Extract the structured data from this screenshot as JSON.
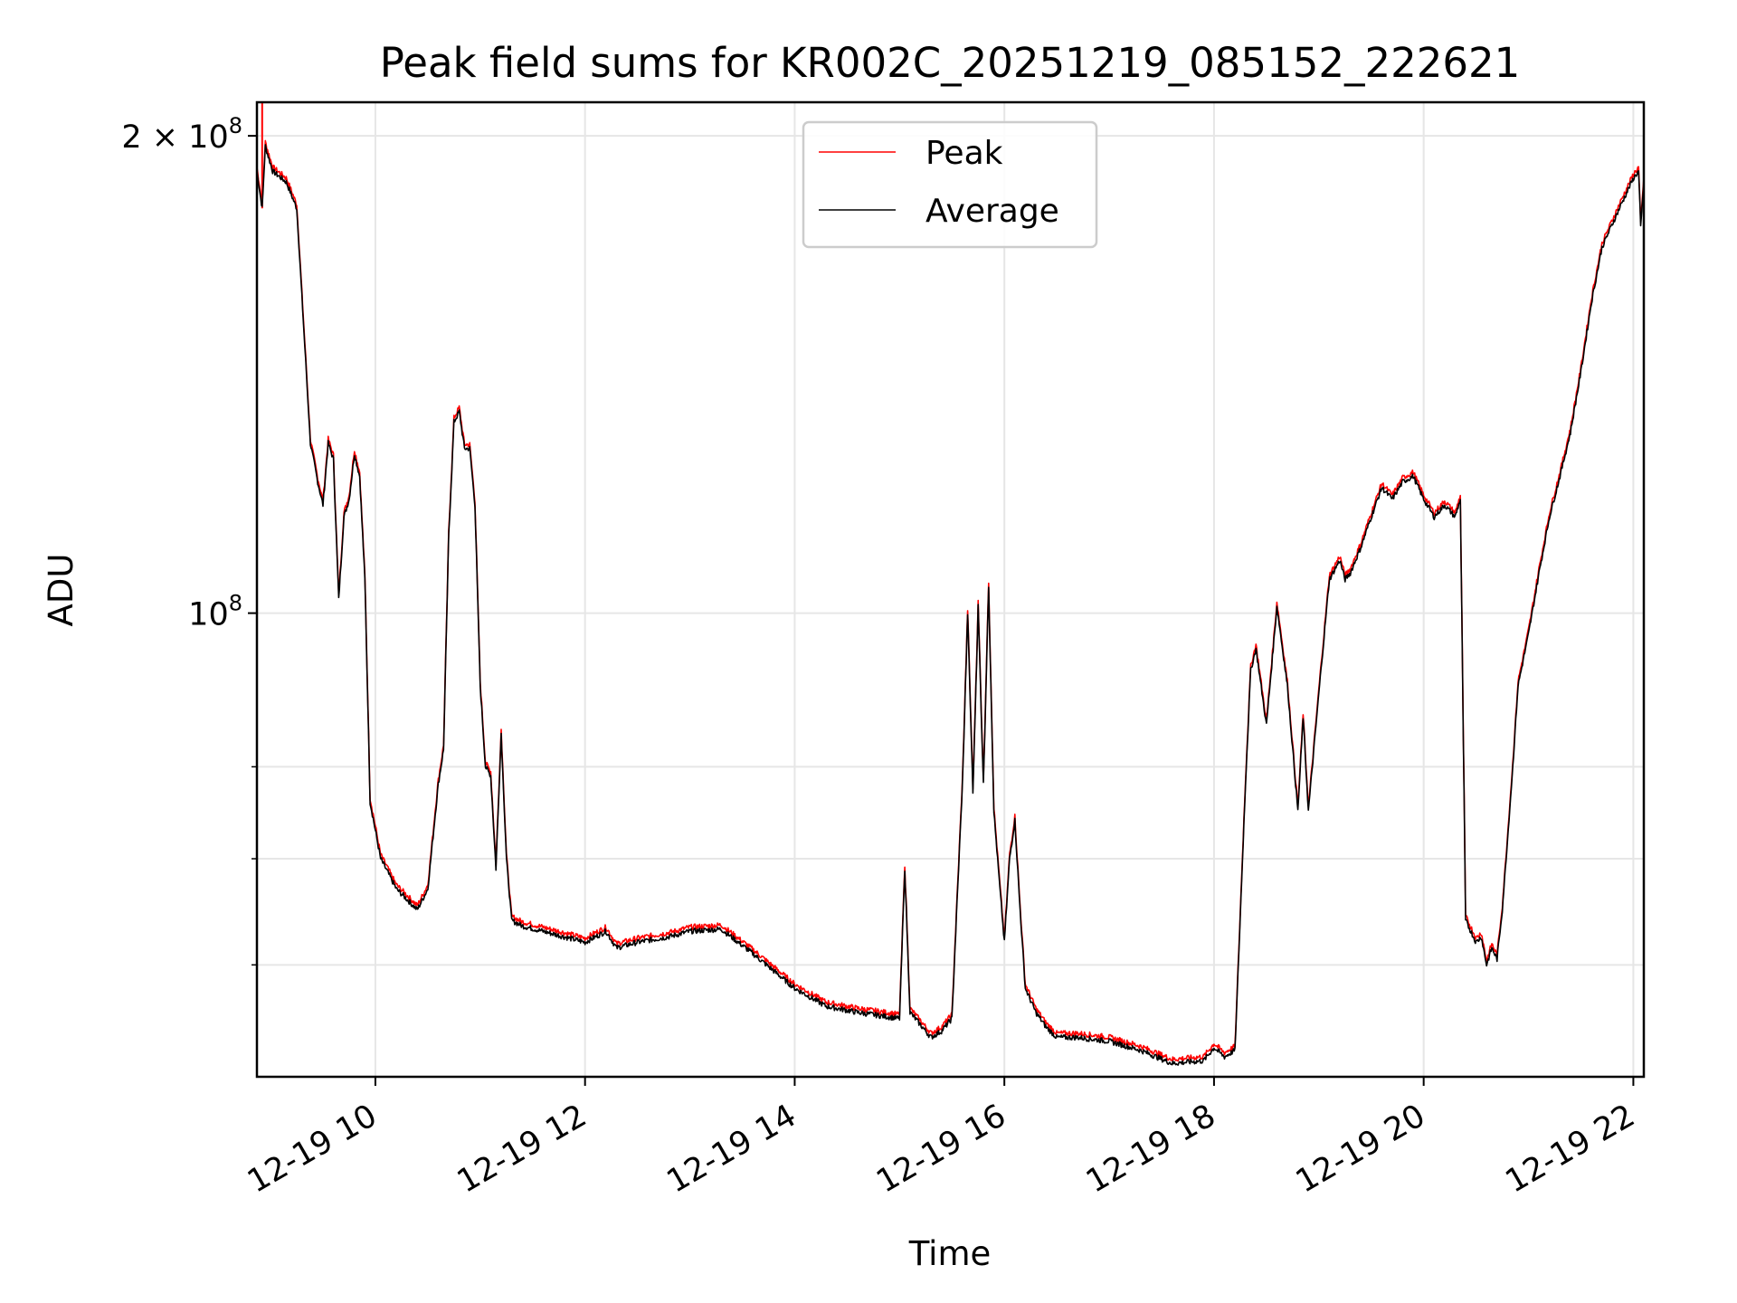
{
  "chart_data": {
    "type": "line",
    "title": "Peak field sums for KR002C_20251219_085152_222621",
    "xlabel": "Time",
    "ylabel": "ADU",
    "yscale": "log",
    "xlim_hours": [
      8.87,
      22.1
    ],
    "ylim": [
      51000000,
      210000000
    ],
    "grid": true,
    "legend_position": "top-center",
    "x_ticks": [
      {
        "value": 10,
        "label": "12-19 10"
      },
      {
        "value": 12,
        "label": "12-19 12"
      },
      {
        "value": 14,
        "label": "12-19 14"
      },
      {
        "value": 16,
        "label": "12-19 16"
      },
      {
        "value": 18,
        "label": "12-19 18"
      },
      {
        "value": 20,
        "label": "12-19 20"
      },
      {
        "value": 22,
        "label": "12-19 22"
      }
    ],
    "y_ticks": [
      {
        "value": 100000000,
        "base": "10",
        "exp": "8",
        "coef": ""
      },
      {
        "value": 200000000,
        "base": "10",
        "exp": "8",
        "coef": "2 × "
      }
    ],
    "y_minor_ticks": [
      60000000,
      70000000,
      80000000
    ],
    "series": [
      {
        "name": "Peak",
        "color": "#ff0000",
        "offset_frac": 0.006,
        "spike": {
          "x": 8.92,
          "y": 215000000
        }
      },
      {
        "name": "Average",
        "color": "#000000",
        "offset_frac": 0.0
      }
    ],
    "x": [
      8.87,
      8.92,
      8.95,
      9.02,
      9.15,
      9.25,
      9.32,
      9.38,
      9.45,
      9.5,
      9.55,
      9.6,
      9.65,
      9.7,
      9.75,
      9.8,
      9.85,
      9.9,
      9.95,
      10.05,
      10.1,
      10.2,
      10.3,
      10.4,
      10.5,
      10.6,
      10.65,
      10.7,
      10.75,
      10.8,
      10.85,
      10.9,
      10.95,
      11.0,
      11.05,
      11.1,
      11.15,
      11.2,
      11.25,
      11.3,
      11.4,
      11.6,
      12.0,
      12.2,
      12.3,
      12.5,
      12.8,
      13.0,
      13.3,
      13.6,
      14.0,
      14.3,
      14.6,
      15.0,
      15.05,
      15.1,
      15.2,
      15.3,
      15.4,
      15.5,
      15.55,
      15.6,
      15.65,
      15.7,
      15.75,
      15.8,
      15.85,
      15.9,
      15.95,
      16.0,
      16.05,
      16.1,
      16.15,
      16.2,
      16.3,
      16.4,
      16.5,
      16.7,
      17.0,
      17.3,
      17.6,
      17.9,
      18.0,
      18.1,
      18.2,
      18.3,
      18.35,
      18.4,
      18.5,
      18.6,
      18.7,
      18.8,
      18.85,
      18.9,
      19.0,
      19.1,
      19.2,
      19.25,
      19.3,
      19.4,
      19.5,
      19.6,
      19.7,
      19.8,
      19.9,
      20.0,
      20.1,
      20.2,
      20.3,
      20.35,
      20.4,
      20.45,
      20.5,
      20.55,
      20.6,
      20.65,
      20.7,
      20.75,
      20.8,
      20.85,
      20.9,
      21.0,
      21.1,
      21.2,
      21.3,
      21.4,
      21.5,
      21.6,
      21.7,
      21.8,
      21.9,
      22.0,
      22.05,
      22.07,
      22.1
    ],
    "values": [
      190000000,
      180000000,
      197000000,
      190000000,
      187000000,
      180000000,
      150000000,
      128000000,
      121000000,
      117000000,
      128000000,
      125000000,
      102000000,
      115000000,
      118000000,
      126000000,
      122000000,
      105000000,
      76000000,
      70000000,
      69000000,
      67000000,
      66000000,
      65000000,
      67000000,
      78000000,
      82000000,
      112000000,
      132000000,
      134000000,
      127000000,
      127000000,
      117000000,
      90000000,
      80000000,
      79000000,
      69000000,
      84000000,
      70000000,
      64000000,
      63500000,
      63000000,
      62000000,
      63000000,
      61500000,
      62000000,
      62500000,
      63000000,
      63200000,
      61000000,
      58000000,
      56500000,
      56000000,
      55500000,
      69000000,
      56000000,
      55000000,
      54000000,
      54500000,
      55500000,
      66000000,
      78000000,
      100000000,
      77000000,
      101000000,
      78000000,
      104000000,
      75000000,
      68000000,
      62000000,
      70000000,
      74000000,
      65000000,
      58000000,
      56000000,
      54800000,
      54000000,
      54000000,
      53700000,
      53000000,
      52000000,
      52200000,
      53200000,
      52500000,
      53000000,
      78000000,
      92000000,
      95000000,
      85000000,
      101000000,
      90000000,
      75000000,
      86000000,
      75000000,
      89000000,
      105000000,
      108000000,
      105000000,
      106000000,
      110000000,
      115000000,
      120000000,
      118000000,
      121000000,
      122000000,
      118000000,
      115000000,
      117000000,
      115000000,
      118000000,
      64000000,
      63000000,
      62000000,
      62500000,
      60000000,
      61500000,
      60500000,
      65000000,
      72000000,
      80000000,
      90000000,
      97000000,
      106000000,
      115000000,
      122000000,
      130000000,
      142000000,
      157000000,
      170000000,
      176000000,
      182000000,
      188000000,
      190000000,
      175000000,
      187000000
    ]
  }
}
